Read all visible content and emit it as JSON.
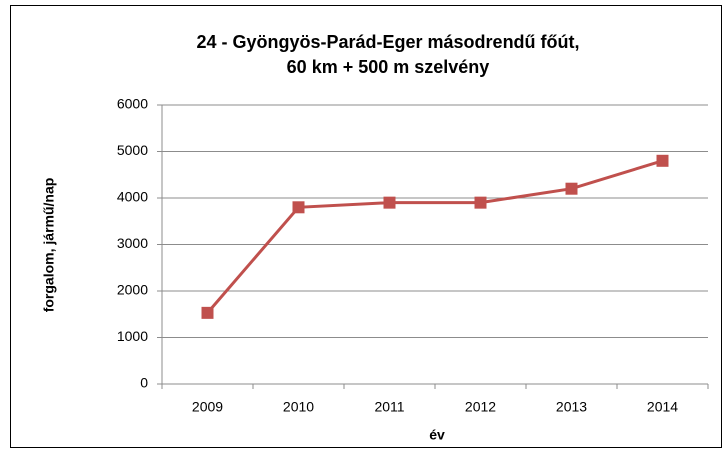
{
  "chart_data": {
    "type": "line",
    "title": [
      "24 - Gyöngyös-Parád-Eger másodrendű főút,",
      "60 km + 500 m szelvény"
    ],
    "xlabel": "év",
    "ylabel": "forgalom, jármű/nap",
    "categories": [
      "2009",
      "2010",
      "2011",
      "2012",
      "2013",
      "2014"
    ],
    "series": [
      {
        "name": "forgalom",
        "color": "#c0504d",
        "values": [
          1530,
          3800,
          3900,
          3900,
          4200,
          4800
        ]
      }
    ],
    "ylim": [
      0,
      6000
    ],
    "yticks": [
      0,
      1000,
      2000,
      3000,
      4000,
      5000,
      6000
    ],
    "grid": true,
    "legend": false
  }
}
